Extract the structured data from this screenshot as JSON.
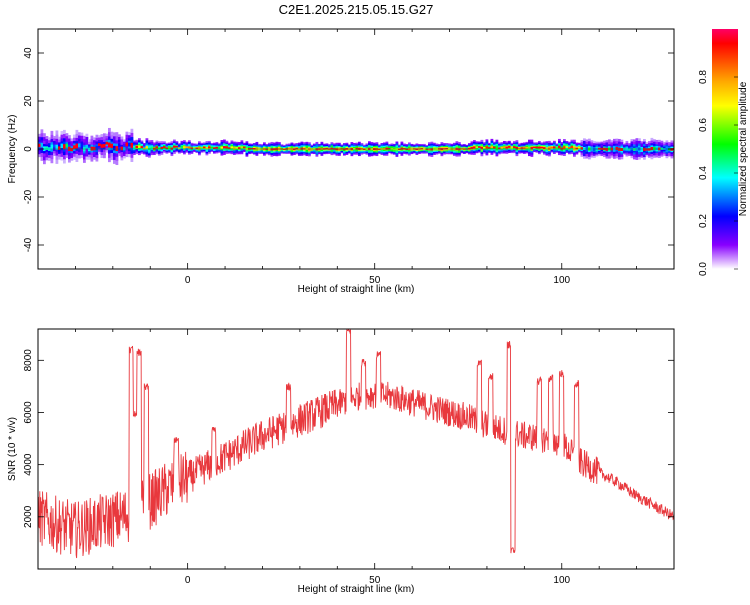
{
  "title": "C2E1.2025.215.05.15.G27",
  "chart_data": [
    {
      "type": "heatmap",
      "xlabel": "Height of straight line (km)",
      "ylabel": "Frequency (Hz)",
      "xlim": [
        -40,
        130
      ],
      "ylim": [
        -50,
        50
      ],
      "xticks": [
        0,
        50,
        100
      ],
      "yticks": [
        -40,
        -20,
        0,
        20,
        40
      ],
      "colorbar": {
        "label": "Normalized spectral amplitude",
        "range": [
          0,
          1
        ],
        "ticks": [
          0.0,
          0.2,
          0.4,
          0.6,
          0.8
        ],
        "colormap": [
          "#ff00ff",
          "#ff0000",
          "#ffff00",
          "#00ff00",
          "#00ffff",
          "#0000ff",
          "#ffffff"
        ]
      },
      "segments": [
        {
          "x0": -40,
          "x1": -15,
          "center": 1,
          "spread": 5.5,
          "amp": 0.45,
          "jitter": 3
        },
        {
          "x0": -15,
          "x1": 0,
          "center": 0.5,
          "spread": 3,
          "amp": 0.7,
          "jitter": 1
        },
        {
          "x0": 0,
          "x1": 15,
          "center": 0.5,
          "spread": 2.5,
          "amp": 0.75,
          "jitter": 0.5
        },
        {
          "x0": 15,
          "x1": 75,
          "center": 0,
          "spread": 2.5,
          "amp": 0.85,
          "jitter": 0.3
        },
        {
          "x0": 75,
          "x1": 105,
          "center": 0.5,
          "spread": 2.8,
          "amp": 0.8,
          "jitter": 0.8
        },
        {
          "x0": 105,
          "x1": 130,
          "center": 0,
          "spread": 3.5,
          "amp": 0.55,
          "jitter": 0.5
        }
      ]
    },
    {
      "type": "line",
      "xlabel": "Height of straight line (km)",
      "ylabel": "SNR (10 * v/v)",
      "xlim": [
        -40,
        130
      ],
      "ylim": [
        0,
        9200
      ],
      "xticks": [
        0,
        50,
        100
      ],
      "yticks": [
        2000,
        4000,
        6000,
        8000
      ],
      "color": "#e8383d",
      "profile": [
        [
          -40,
          2000
        ],
        [
          -35,
          1700
        ],
        [
          -30,
          1500
        ],
        [
          -25,
          1700
        ],
        [
          -20,
          1900
        ],
        [
          -15,
          2100
        ],
        [
          -10,
          2600
        ],
        [
          -5,
          3100
        ],
        [
          0,
          3500
        ],
        [
          5,
          3900
        ],
        [
          10,
          4300
        ],
        [
          15,
          4700
        ],
        [
          20,
          5100
        ],
        [
          25,
          5400
        ],
        [
          30,
          5700
        ],
        [
          35,
          6000
        ],
        [
          40,
          6300
        ],
        [
          45,
          6600
        ],
        [
          50,
          6700
        ],
        [
          55,
          6600
        ],
        [
          60,
          6400
        ],
        [
          65,
          6200
        ],
        [
          70,
          6000
        ],
        [
          75,
          5800
        ],
        [
          80,
          5500
        ],
        [
          85,
          5300
        ],
        [
          90,
          5100
        ],
        [
          95,
          5000
        ],
        [
          100,
          4800
        ],
        [
          105,
          4100
        ],
        [
          110,
          3700
        ],
        [
          115,
          3300
        ],
        [
          120,
          2800
        ],
        [
          125,
          2400
        ],
        [
          130,
          2000
        ]
      ],
      "spikes": [
        [
          -15,
          8400
        ],
        [
          -14,
          6000
        ],
        [
          -13,
          8300
        ],
        [
          -11,
          7000
        ],
        [
          -3,
          4900
        ],
        [
          7,
          5300
        ],
        [
          27,
          7000
        ],
        [
          43,
          9100
        ],
        [
          47,
          7900
        ],
        [
          51,
          8200
        ],
        [
          78,
          7900
        ],
        [
          81,
          7400
        ],
        [
          86,
          8600
        ],
        [
          87,
          700
        ],
        [
          94,
          7200
        ],
        [
          97,
          7300
        ],
        [
          100,
          7500
        ],
        [
          104,
          7100
        ]
      ]
    }
  ]
}
